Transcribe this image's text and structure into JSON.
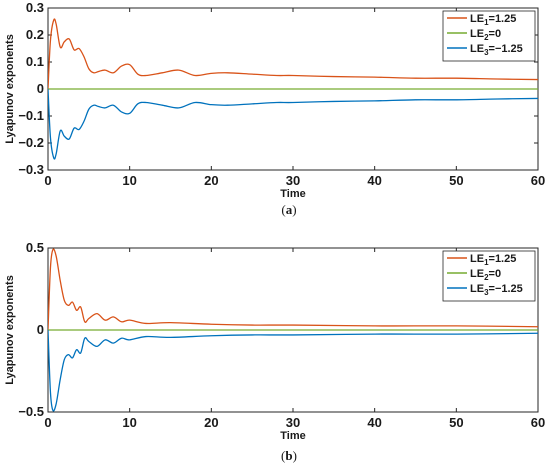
{
  "chart_data": [
    {
      "type": "line",
      "caption": "a",
      "xlabel": "Time",
      "ylabel": "Lyapunov exponents",
      "xlim": [
        0,
        60
      ],
      "ylim": [
        -0.3,
        0.3
      ],
      "xticks": [
        "0",
        "10",
        "20",
        "30",
        "40",
        "50",
        "60"
      ],
      "yticks": [
        "-0.3",
        "-0.2",
        "-0.1",
        "0",
        "0.1",
        "0.2",
        "0.3"
      ],
      "grid": false,
      "legend_position": "top-right",
      "series": [
        {
          "label": "LE1=1.25",
          "label_base": "LE",
          "label_sub": "1",
          "label_rest": "=1.25",
          "color": "#d95319",
          "x": [
            0,
            0.3,
            0.7,
            1.0,
            1.5,
            2.0,
            2.6,
            3.2,
            3.8,
            4.4,
            5.0,
            5.6,
            6.2,
            7.0,
            8.0,
            9.0,
            10.0,
            11.0,
            12.0,
            14.0,
            16.0,
            18.0,
            20.0,
            22.0,
            25.0,
            28.0,
            30.0,
            35.0,
            40.0,
            45.0,
            50.0,
            55.0,
            60.0
          ],
          "y": [
            0,
            0.18,
            0.255,
            0.24,
            0.155,
            0.175,
            0.185,
            0.145,
            0.15,
            0.12,
            0.075,
            0.06,
            0.065,
            0.07,
            0.06,
            0.085,
            0.09,
            0.055,
            0.05,
            0.06,
            0.07,
            0.05,
            0.058,
            0.06,
            0.055,
            0.05,
            0.05,
            0.046,
            0.044,
            0.04,
            0.04,
            0.037,
            0.035
          ]
        },
        {
          "label": "LE2=0",
          "label_base": "LE",
          "label_sub": "2",
          "label_rest": "=0",
          "color": "#77ac30",
          "x": [
            0,
            60
          ],
          "y": [
            0,
            0
          ]
        },
        {
          "label": "LE3=-1.25",
          "label_base": "LE",
          "label_sub": "3",
          "label_rest": "=−1.25",
          "color": "#0072bd",
          "x": [
            0,
            0.3,
            0.7,
            1.0,
            1.5,
            2.0,
            2.6,
            3.2,
            3.8,
            4.4,
            5.0,
            5.6,
            6.2,
            7.0,
            8.0,
            9.0,
            10.0,
            11.0,
            12.0,
            14.0,
            16.0,
            18.0,
            20.0,
            22.0,
            25.0,
            28.0,
            30.0,
            35.0,
            40.0,
            45.0,
            50.0,
            55.0,
            60.0
          ],
          "y": [
            0,
            -0.18,
            -0.255,
            -0.24,
            -0.155,
            -0.175,
            -0.185,
            -0.145,
            -0.15,
            -0.12,
            -0.075,
            -0.06,
            -0.065,
            -0.07,
            -0.06,
            -0.085,
            -0.09,
            -0.055,
            -0.05,
            -0.06,
            -0.07,
            -0.05,
            -0.058,
            -0.06,
            -0.055,
            -0.05,
            -0.05,
            -0.046,
            -0.044,
            -0.04,
            -0.04,
            -0.037,
            -0.035
          ]
        }
      ]
    },
    {
      "type": "line",
      "caption": "b",
      "xlabel": "Time",
      "ylabel": "Lyapunov exponents",
      "xlim": [
        0,
        60
      ],
      "ylim": [
        -0.5,
        0.5
      ],
      "xticks": [
        "0",
        "10",
        "20",
        "30",
        "40",
        "50",
        "60"
      ],
      "yticks": [
        "-0.5",
        "0",
        "0.5"
      ],
      "grid": false,
      "legend_position": "top-right",
      "series": [
        {
          "label": "LE1=1.25",
          "label_base": "LE",
          "label_sub": "1",
          "label_rest": "=1.25",
          "color": "#d95319",
          "x": [
            0,
            0.3,
            0.6,
            1.0,
            1.5,
            2.0,
            2.5,
            3.0,
            3.5,
            4.0,
            4.5,
            5.0,
            6.0,
            7.0,
            8.0,
            9.0,
            10.0,
            12.0,
            15.0,
            20.0,
            25.0,
            30.0,
            40.0,
            50.0,
            60.0
          ],
          "y": [
            0,
            0.38,
            0.49,
            0.45,
            0.3,
            0.18,
            0.15,
            0.17,
            0.12,
            0.14,
            0.05,
            0.07,
            0.1,
            0.06,
            0.08,
            0.05,
            0.06,
            0.04,
            0.045,
            0.035,
            0.03,
            0.03,
            0.025,
            0.025,
            0.02
          ]
        },
        {
          "label": "LE2=0",
          "label_base": "LE",
          "label_sub": "2",
          "label_rest": "=0",
          "color": "#77ac30",
          "x": [
            0,
            60
          ],
          "y": [
            0,
            0
          ]
        },
        {
          "label": "LE3=-1.25",
          "label_base": "LE",
          "label_sub": "3",
          "label_rest": "=−1.25",
          "color": "#0072bd",
          "x": [
            0,
            0.3,
            0.6,
            1.0,
            1.5,
            2.0,
            2.5,
            3.0,
            3.5,
            4.0,
            4.5,
            5.0,
            6.0,
            7.0,
            8.0,
            9.0,
            10.0,
            12.0,
            15.0,
            20.0,
            25.0,
            30.0,
            40.0,
            50.0,
            60.0
          ],
          "y": [
            0,
            -0.38,
            -0.49,
            -0.45,
            -0.3,
            -0.18,
            -0.15,
            -0.17,
            -0.12,
            -0.14,
            -0.05,
            -0.07,
            -0.1,
            -0.06,
            -0.08,
            -0.05,
            -0.06,
            -0.04,
            -0.045,
            -0.035,
            -0.03,
            -0.03,
            -0.025,
            -0.025,
            -0.02
          ]
        }
      ]
    }
  ]
}
